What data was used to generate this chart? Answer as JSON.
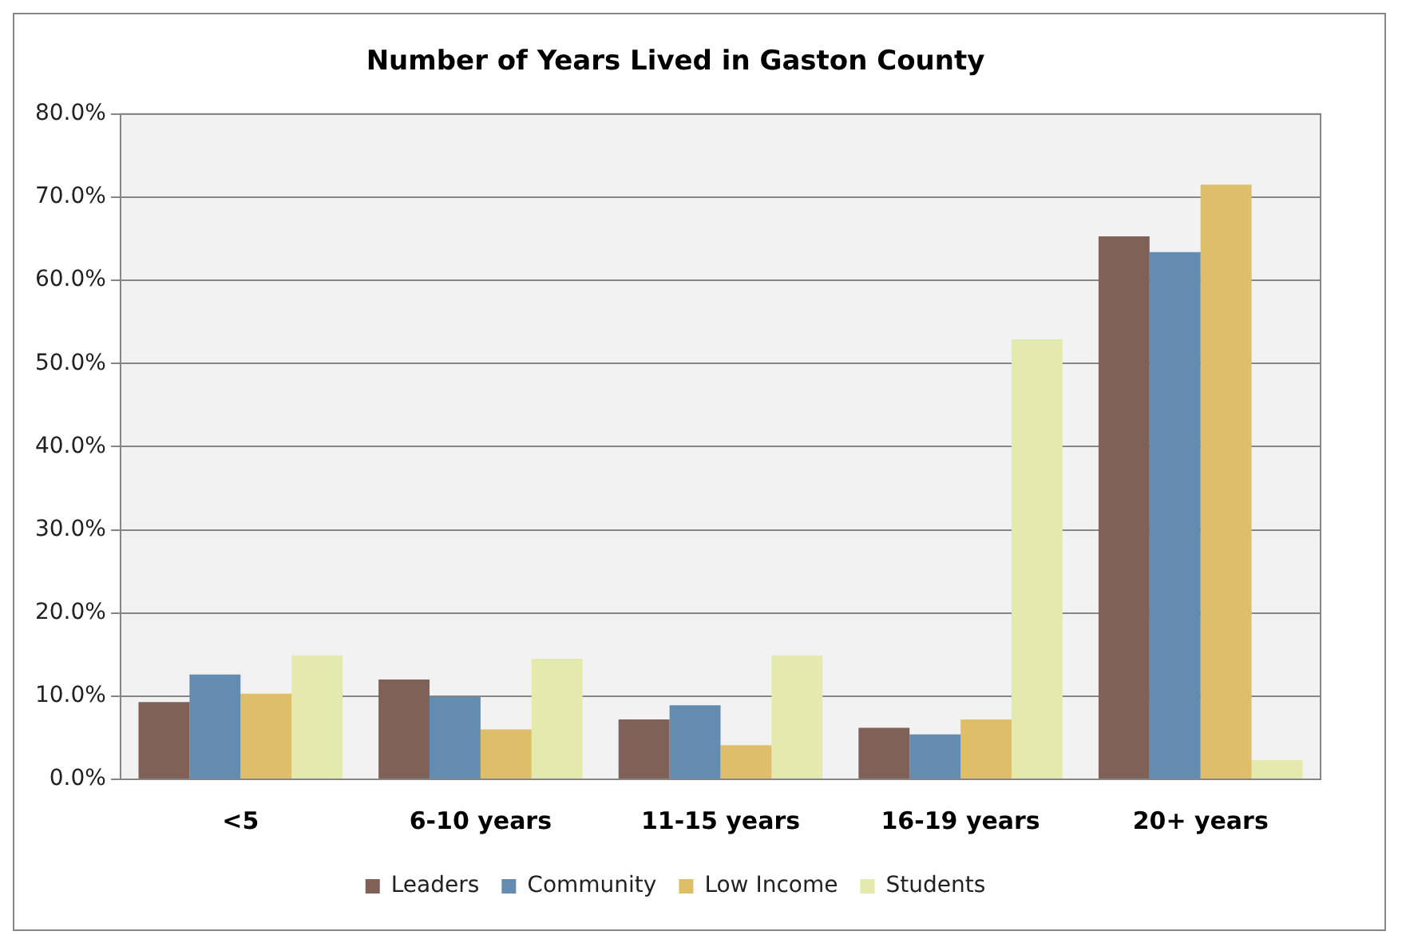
{
  "chart_data": {
    "type": "bar",
    "title": "Number of Years Lived in Gaston County",
    "categories": [
      "<5",
      "6-10 years",
      "11-15 years",
      "16-19 years",
      "20+ years"
    ],
    "series": [
      {
        "name": "Leaders",
        "color": "#7f6158",
        "values": [
          9.3,
          12.0,
          7.2,
          6.2,
          65.3
        ]
      },
      {
        "name": "Community",
        "color": "#648cb0",
        "values": [
          12.6,
          9.9,
          8.9,
          5.4,
          63.4
        ]
      },
      {
        "name": "Low Income",
        "color": "#dfbe6a",
        "values": [
          10.3,
          6.0,
          4.1,
          7.2,
          71.5
        ]
      },
      {
        "name": "Students",
        "color": "#e4eaae",
        "values": [
          14.9,
          14.5,
          14.9,
          52.9,
          2.3
        ]
      }
    ],
    "ylim": [
      0,
      80
    ],
    "yticks": [
      {
        "value": 0,
        "label": "0.0%"
      },
      {
        "value": 10,
        "label": "10.0%"
      },
      {
        "value": 20,
        "label": "20.0%"
      },
      {
        "value": 30,
        "label": "30.0%"
      },
      {
        "value": 40,
        "label": "40.0%"
      },
      {
        "value": 50,
        "label": "50.0%"
      },
      {
        "value": 60,
        "label": "60.0%"
      },
      {
        "value": 70,
        "label": "70.0%"
      },
      {
        "value": 80,
        "label": "80.0%"
      }
    ],
    "grid": "y",
    "legend": "bottom"
  }
}
